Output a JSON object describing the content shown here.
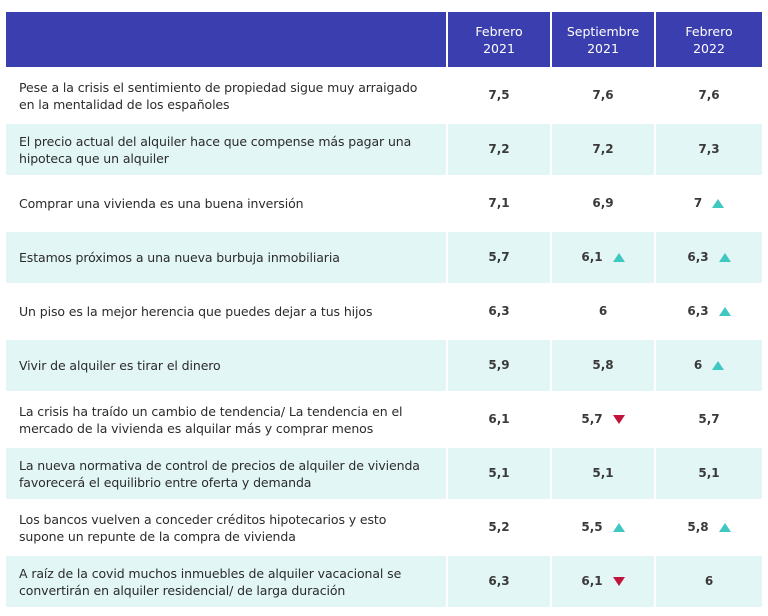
{
  "header": {
    "col1": [
      "Febrero",
      "2021"
    ],
    "col2": [
      "Septiembre",
      "2021"
    ],
    "col3": [
      "Febrero",
      "2022"
    ]
  },
  "colors": {
    "header_bg": "#3b3eae",
    "band": "#e2f6f5",
    "up": "#3fc7c2",
    "down": "#c0143c"
  },
  "rows": [
    {
      "text": "Pese a la crisis el sentimiento de propiedad sigue muy arraigado en la mentalidad de los españoles",
      "v1": "7,5",
      "v2": "7,6",
      "v3": "7,6",
      "t2": "none",
      "t3": "none"
    },
    {
      "text": "El precio actual del alquiler hace que compense más pagar una hipoteca que un alquiler",
      "v1": "7,2",
      "v2": "7,2",
      "v3": "7,3",
      "t2": "none",
      "t3": "none"
    },
    {
      "text": "Comprar una vivienda es una buena inversión",
      "v1": "7,1",
      "v2": "6,9",
      "v3": "7",
      "t2": "none",
      "t3": "up"
    },
    {
      "text": "Estamos próximos a una nueva burbuja inmobiliaria",
      "v1": "5,7",
      "v2": "6,1",
      "v3": "6,3",
      "t2": "up",
      "t3": "up"
    },
    {
      "text": "Un piso es la mejor herencia que puedes dejar a tus hijos",
      "v1": "6,3",
      "v2": "6",
      "v3": "6,3",
      "t2": "none",
      "t3": "up"
    },
    {
      "text": "Vivir de alquiler es tirar el dinero",
      "v1": "5,9",
      "v2": "5,8",
      "v3": "6",
      "t2": "none",
      "t3": "up"
    },
    {
      "text": "La crisis ha traído un cambio de tendencia/ La tendencia en el mercado de la vivienda es alquilar más y comprar menos",
      "v1": "6,1",
      "v2": "5,7",
      "v3": "5,7",
      "t2": "down",
      "t3": "none"
    },
    {
      "text": "La nueva normativa de control de precios de alquiler de vivienda favorecerá el equilibrio entre oferta y demanda",
      "v1": "5,1",
      "v2": "5,1",
      "v3": "5,1",
      "t2": "none",
      "t3": "none"
    },
    {
      "text": "Los bancos vuelven a conceder créditos hipotecarios y esto supone un repunte de la compra de vivienda",
      "v1": "5,2",
      "v2": "5,5",
      "v3": "5,8",
      "t2": "up",
      "t3": "up"
    },
    {
      "text": "A raíz de la covid muchos inmuebles de alquiler vacacional se convertirán en alquiler residencial/ de larga duración",
      "v1": "6,3",
      "v2": "6,1",
      "v3": "6",
      "t2": "down",
      "t3": "none"
    }
  ]
}
